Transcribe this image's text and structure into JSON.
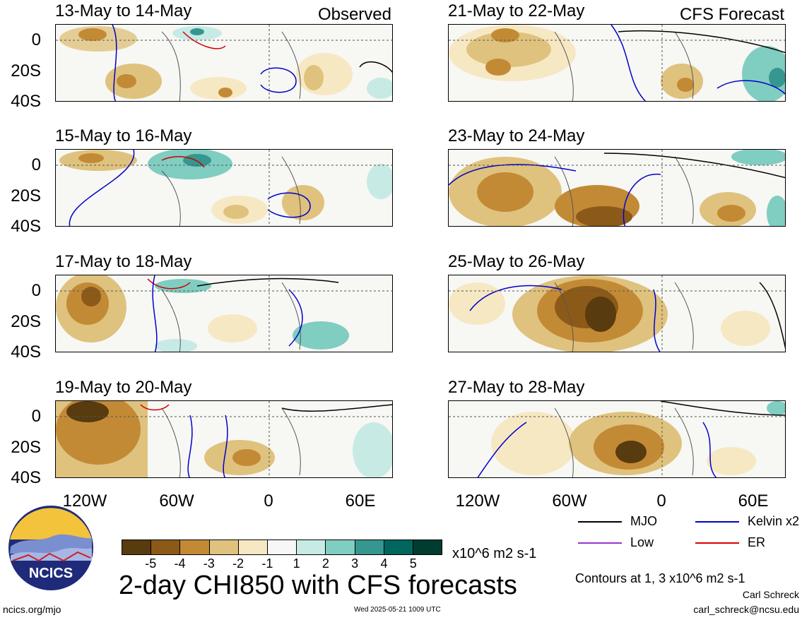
{
  "corners": {
    "left": "Observed",
    "right": "CFS Forecast"
  },
  "left_panels": [
    "13-May to 14-May",
    "15-May to 16-May",
    "17-May to 18-May",
    "19-May to 20-May"
  ],
  "right_panels": [
    "21-May to 22-May",
    "23-May to 24-May",
    "25-May to 26-May",
    "27-May to 28-May"
  ],
  "lat_labels": [
    "0",
    "20S",
    "40S"
  ],
  "lon_labels": [
    "120W",
    "60W",
    "0",
    "60E"
  ],
  "colorbar": {
    "colors": [
      "#583b0e",
      "#8c5a18",
      "#c38a36",
      "#dfc27d",
      "#f6e8c3",
      "#f7f7f7",
      "#c7eae5",
      "#80cdc1",
      "#35978f",
      "#01665e",
      "#003c30"
    ],
    "labels": [
      "-5",
      "-4",
      "-3",
      "-2",
      "-1",
      "1",
      "2",
      "3",
      "4",
      "5"
    ],
    "units": "x10^6 m2 s-1"
  },
  "legend": {
    "mjo": {
      "label": "MJO",
      "color": "#000000"
    },
    "kelvin": {
      "label": "Kelvin x2",
      "color": "#0000cc"
    },
    "low": {
      "label": "Low",
      "color": "#9933cc"
    },
    "er": {
      "label": "ER",
      "color": "#dd0000"
    }
  },
  "contours_note": "Contours at 1, 3 x10^6 m2 s-1",
  "author": "Carl Schreck",
  "email": "carl_schreck@ncsu.edu",
  "footer_left": "ncics.org/mjo",
  "timestamp": "Wed 2025-05-21 1009 UTC",
  "main_title": "2-day CHI850 with CFS forecasts",
  "logo_text": "NCICS"
}
